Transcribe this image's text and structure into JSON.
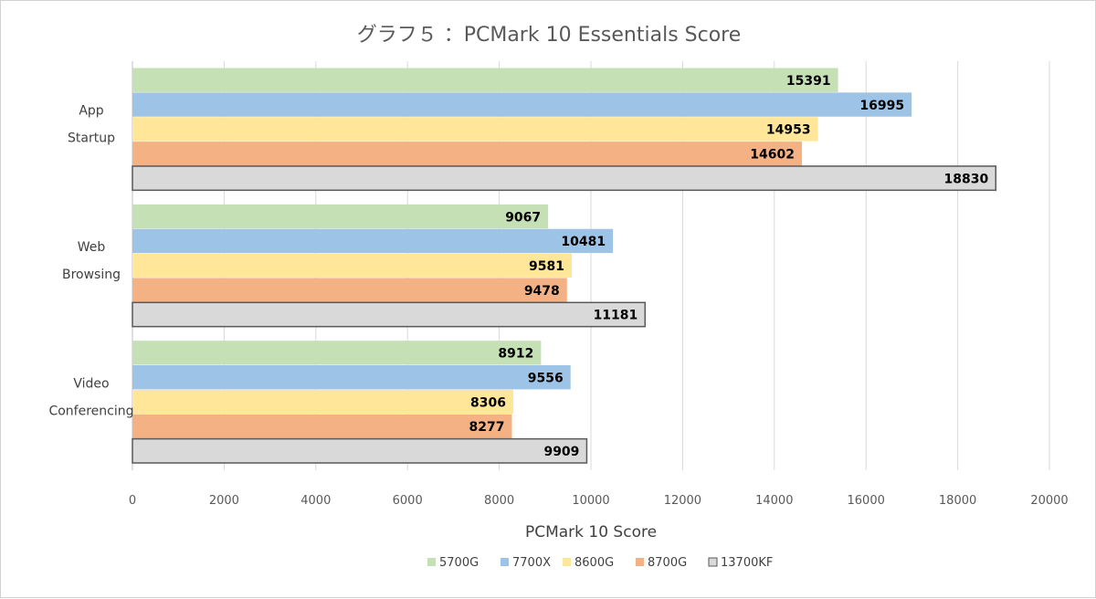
{
  "chart_data": {
    "type": "bar",
    "orientation": "horizontal",
    "title": "グラフ５ ：PCMark 10 Essentials Score",
    "xlabel": "PCMark 10 Score",
    "ylabel": "",
    "xlim": [
      0,
      20000
    ],
    "xticks": [
      0,
      2000,
      4000,
      6000,
      8000,
      10000,
      12000,
      14000,
      16000,
      18000,
      20000
    ],
    "grid": true,
    "legend_position": "bottom",
    "categories": [
      {
        "lines": [
          "App",
          "Startup"
        ]
      },
      {
        "lines": [
          "Web",
          "Browsing"
        ]
      },
      {
        "lines": [
          "Video",
          "Conferencing"
        ]
      }
    ],
    "series": [
      {
        "name": "5700G",
        "color": "#c5e0b4",
        "values": [
          15391,
          9067,
          8912
        ]
      },
      {
        "name": "7700X",
        "color": "#9dc3e6",
        "values": [
          16995,
          10481,
          9556
        ]
      },
      {
        "name": "8600G",
        "color": "#ffe699",
        "values": [
          14953,
          9581,
          8306
        ]
      },
      {
        "name": "8700G",
        "color": "#f4b183",
        "values": [
          14602,
          9478,
          8277
        ]
      },
      {
        "name": "13700KF",
        "color": "#d9d9d9",
        "outline": "#595959",
        "values": [
          18830,
          11181,
          9909
        ]
      }
    ]
  }
}
